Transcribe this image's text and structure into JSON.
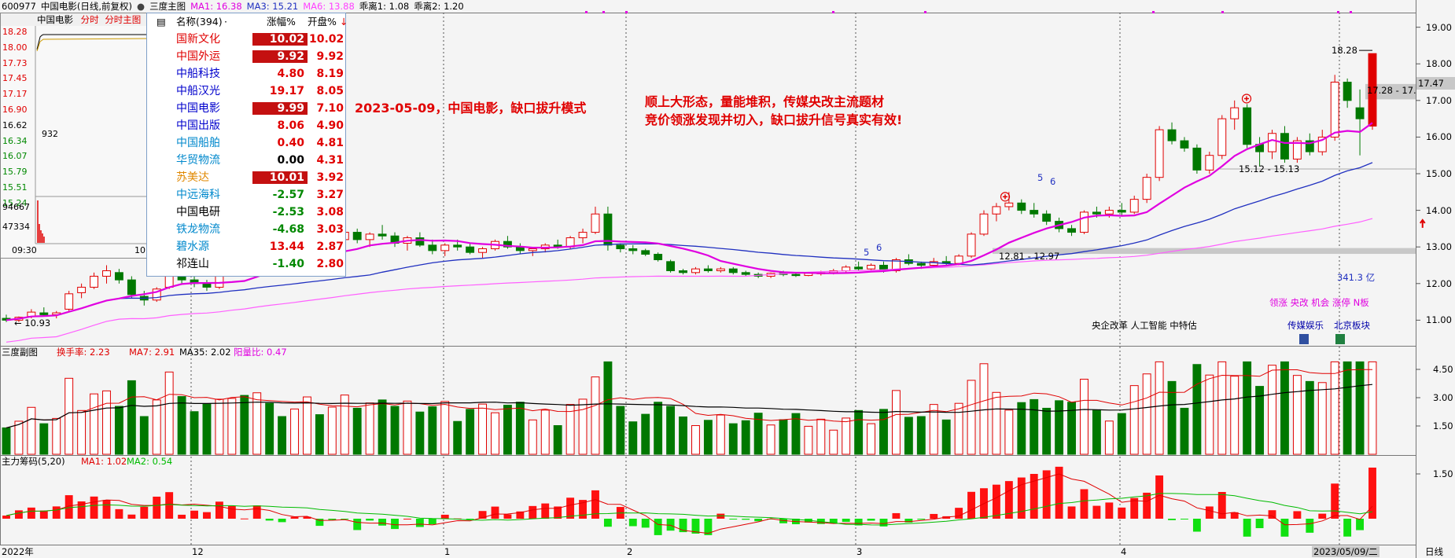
{
  "header": {
    "stock_code": "600977",
    "stock_name": "中国电影(日线,前复权)",
    "main_chart_label": "三度主图",
    "ma1": "MA1: 16.38",
    "ma3": "MA3: 15.21",
    "ma6": "MA6: 13.88",
    "deviation1": "乖离1: 1.08",
    "deviation2": "乖离2: 1.20"
  },
  "notes": {
    "date_note": "2023-05-09，中国电影，缺口拔升模式",
    "analysis_line1": "顺上大形态，量能堆积，传媒央改主流题材",
    "analysis_line2": "竞价领涨发现并切入，缺口拔升信号真实有效!"
  },
  "minute_inset": {
    "name": "中国电影",
    "link1": "分时",
    "link2": "分时主图",
    "price_labels": [
      "18.28",
      "18.00",
      "17.73",
      "17.45",
      "17.17",
      "16.90",
      "16.62",
      "16.34",
      "16.07",
      "15.79",
      "15.51",
      "15.24"
    ],
    "vol_labels": [
      "94667",
      "47334"
    ],
    "start_time": "09:30",
    "end_time_partial": "10",
    "marker": "932"
  },
  "ranking": {
    "header_name": "名称(394)",
    "header_dot": "·",
    "header_chg": "涨幅%",
    "header_open": "开盘%",
    "sort_arrow": "↓",
    "rows": [
      {
        "name": "国新文化",
        "chg": "10.02",
        "open": "10.02",
        "color": "#e00000",
        "hl": true
      },
      {
        "name": "中国外运",
        "chg": "9.92",
        "open": "9.92",
        "color": "#e00000",
        "hl": true
      },
      {
        "name": "中船科技",
        "chg": "4.80",
        "open": "8.19",
        "color": "#0000cc",
        "hl": false
      },
      {
        "name": "中船汉光",
        "chg": "19.17",
        "open": "8.05",
        "color": "#0000cc",
        "hl": false
      },
      {
        "name": "中国电影",
        "chg": "9.99",
        "open": "7.10",
        "color": "#0000cc",
        "hl": true
      },
      {
        "name": "中国出版",
        "chg": "8.06",
        "open": "4.90",
        "color": "#0000cc",
        "hl": false
      },
      {
        "name": "中国船舶",
        "chg": "0.40",
        "open": "4.81",
        "color": "#0088cc",
        "hl": false
      },
      {
        "name": "华贸物流",
        "chg": "0.00",
        "open": "4.31",
        "color": "#0088cc",
        "hl": false
      },
      {
        "name": "苏美达",
        "chg": "10.01",
        "open": "3.92",
        "color": "#e08800",
        "hl": true
      },
      {
        "name": "中远海科",
        "chg": "-2.57",
        "open": "3.27",
        "color": "#0088cc",
        "hl": false
      },
      {
        "name": "中国电研",
        "chg": "-2.53",
        "open": "3.08",
        "color": "#000000",
        "hl": false
      },
      {
        "name": "铁龙物流",
        "chg": "-4.68",
        "open": "3.03",
        "color": "#0088cc",
        "hl": false
      },
      {
        "name": "碧水源",
        "chg": "13.44",
        "open": "2.87",
        "color": "#0088cc",
        "hl": false
      },
      {
        "name": "祁连山",
        "chg": "-1.40",
        "open": "2.80",
        "color": "#000000",
        "hl": false
      }
    ]
  },
  "main_annotations": {
    "low_marker": "10.93",
    "high_marker": "18.28",
    "gap_low": "12.81 - 12.97",
    "gap_mid": "15.12 - 15.13",
    "gap_high": "17.28 - 17.",
    "current_price_tag": "17.47",
    "market_cap": "341.3 亿",
    "tags_line": "领涨 央改 机会 涨停 N板",
    "concepts": "央企改革 人工智能 中特估",
    "sector1": "传媒娱乐",
    "sector2": "北京板块",
    "small_numbers": [
      "5",
      "6",
      "5",
      "6"
    ]
  },
  "sub1": {
    "title": "三度副图",
    "turnover": "换手率: 2.23",
    "ma7": "MA7: 2.91",
    "ma35": "MA35: 2.02",
    "yinyang": "阳量比: 0.47",
    "axis": [
      "4.50",
      "3.00",
      "1.50"
    ]
  },
  "sub2": {
    "title": "主力筹码(5,20)",
    "ma1": "MA1: 1.02",
    "ma2": "MA2: 0.54",
    "axis": [
      "1.50"
    ]
  },
  "x_axis": {
    "labels": [
      "2022年",
      "12",
      "1",
      "2",
      "3",
      "4",
      "2023/05/09/二"
    ],
    "period": "日线"
  },
  "colors": {
    "up": "#e00000",
    "down": "#007800",
    "ma1": "#e000e0",
    "ma3": "#2030c0",
    "ma6": "#ff60ff",
    "background": "#f4f4f4"
  },
  "chart_data": {
    "type": "candlestick",
    "symbol": "600977",
    "title": "中国电影(日线,前复权)",
    "y_range": [
      10.3,
      19.4
    ],
    "y_ticks": [
      11.0,
      12.0,
      13.0,
      14.0,
      15.0,
      16.0,
      17.0,
      18.0,
      19.0
    ],
    "x_tick_labels": [
      "2022年",
      "12",
      "1",
      "2",
      "3",
      "4",
      "2023/05/09/二"
    ],
    "candles_approx": [
      [
        11.05,
        11.15,
        10.95,
        11.0
      ],
      [
        11.0,
        11.1,
        10.95,
        11.08
      ],
      [
        11.1,
        11.3,
        11.05,
        11.22
      ],
      [
        11.2,
        11.35,
        11.1,
        11.15
      ],
      [
        11.15,
        11.25,
        11.05,
        11.2
      ],
      [
        11.3,
        11.8,
        11.25,
        11.72
      ],
      [
        11.75,
        12.0,
        11.6,
        11.9
      ],
      [
        11.9,
        12.3,
        11.85,
        12.2
      ],
      [
        12.2,
        12.5,
        12.0,
        12.35
      ],
      [
        12.3,
        12.4,
        12.0,
        12.1
      ],
      [
        12.1,
        12.2,
        11.6,
        11.7
      ],
      [
        11.65,
        11.8,
        11.4,
        11.55
      ],
      [
        11.55,
        11.9,
        11.5,
        11.85
      ],
      [
        11.9,
        12.5,
        11.85,
        12.4
      ],
      [
        12.4,
        12.6,
        12.0,
        12.1
      ],
      [
        12.1,
        12.2,
        11.9,
        12.0
      ],
      [
        12.0,
        12.1,
        11.8,
        11.9
      ],
      [
        11.9,
        12.3,
        11.85,
        12.25
      ],
      [
        12.3,
        12.6,
        12.2,
        12.55
      ],
      [
        12.55,
        12.7,
        12.3,
        12.4
      ],
      [
        12.45,
        12.9,
        12.4,
        12.85
      ],
      [
        12.9,
        13.1,
        12.7,
        12.8
      ],
      [
        12.8,
        13.0,
        12.6,
        12.7
      ],
      [
        12.7,
        12.9,
        12.55,
        12.85
      ],
      [
        12.9,
        13.2,
        12.8,
        13.1
      ],
      [
        13.1,
        13.3,
        12.9,
        13.0
      ],
      [
        13.0,
        13.2,
        12.85,
        13.15
      ],
      [
        13.2,
        13.5,
        13.1,
        13.4
      ],
      [
        13.4,
        13.5,
        13.1,
        13.2
      ],
      [
        13.2,
        13.4,
        13.0,
        13.35
      ],
      [
        13.35,
        13.6,
        13.2,
        13.3
      ],
      [
        13.3,
        13.4,
        13.0,
        13.1
      ],
      [
        13.1,
        13.3,
        12.9,
        13.25
      ],
      [
        13.25,
        13.4,
        13.0,
        13.05
      ],
      [
        13.05,
        13.2,
        12.8,
        12.9
      ],
      [
        12.9,
        13.1,
        12.75,
        13.05
      ],
      [
        13.05,
        13.2,
        12.9,
        13.0
      ],
      [
        13.0,
        13.1,
        12.8,
        12.85
      ],
      [
        12.85,
        13.0,
        12.7,
        12.95
      ],
      [
        12.95,
        13.2,
        12.9,
        13.15
      ],
      [
        13.15,
        13.3,
        12.95,
        13.0
      ],
      [
        13.0,
        13.1,
        12.8,
        12.9
      ],
      [
        12.9,
        13.0,
        12.75,
        12.95
      ],
      [
        12.95,
        13.1,
        12.85,
        13.05
      ],
      [
        13.05,
        13.2,
        12.95,
        13.0
      ],
      [
        13.0,
        13.3,
        12.95,
        13.25
      ],
      [
        13.25,
        13.5,
        13.1,
        13.4
      ],
      [
        13.4,
        14.1,
        13.35,
        13.9
      ],
      [
        13.9,
        14.1,
        12.9,
        13.05
      ],
      [
        13.05,
        13.1,
        12.85,
        12.95
      ],
      [
        12.95,
        13.05,
        12.8,
        12.9
      ],
      [
        12.9,
        12.95,
        12.75,
        12.8
      ],
      [
        12.8,
        12.85,
        12.6,
        12.65
      ],
      [
        12.6,
        12.65,
        12.3,
        12.35
      ],
      [
        12.35,
        12.4,
        12.25,
        12.3
      ],
      [
        12.3,
        12.45,
        12.25,
        12.4
      ],
      [
        12.4,
        12.5,
        12.3,
        12.35
      ],
      [
        12.35,
        12.45,
        12.3,
        12.4
      ],
      [
        12.4,
        12.45,
        12.25,
        12.3
      ],
      [
        12.3,
        12.35,
        12.2,
        12.25
      ],
      [
        12.25,
        12.3,
        12.15,
        12.2
      ],
      [
        12.2,
        12.3,
        12.15,
        12.28
      ],
      [
        12.28,
        12.35,
        12.2,
        12.25
      ],
      [
        12.25,
        12.3,
        12.18,
        12.22
      ],
      [
        12.22,
        12.3,
        12.2,
        12.28
      ],
      [
        12.28,
        12.35,
        12.22,
        12.3
      ],
      [
        12.3,
        12.4,
        12.25,
        12.35
      ],
      [
        12.35,
        12.5,
        12.3,
        12.45
      ],
      [
        12.45,
        12.6,
        12.35,
        12.4
      ],
      [
        12.4,
        12.55,
        12.35,
        12.5
      ],
      [
        12.5,
        12.6,
        12.3,
        12.35
      ],
      [
        12.35,
        12.7,
        12.3,
        12.65
      ],
      [
        12.65,
        12.8,
        12.5,
        12.55
      ],
      [
        12.55,
        12.6,
        12.4,
        12.5
      ],
      [
        12.5,
        12.7,
        12.45,
        12.6
      ],
      [
        12.6,
        12.75,
        12.5,
        12.55
      ],
      [
        12.55,
        12.8,
        12.5,
        12.75
      ],
      [
        12.75,
        13.4,
        12.7,
        13.35
      ],
      [
        13.35,
        14.0,
        13.3,
        13.9
      ],
      [
        13.9,
        14.2,
        13.7,
        14.1
      ],
      [
        14.1,
        14.5,
        14.0,
        14.2
      ],
      [
        14.2,
        14.3,
        13.9,
        14.0
      ],
      [
        14.0,
        14.2,
        13.8,
        13.9
      ],
      [
        13.9,
        14.0,
        13.6,
        13.7
      ],
      [
        13.7,
        13.8,
        13.4,
        13.5
      ],
      [
        13.5,
        13.6,
        13.3,
        13.4
      ],
      [
        13.4,
        14.0,
        13.35,
        13.95
      ],
      [
        13.95,
        14.1,
        13.8,
        13.9
      ],
      [
        13.9,
        14.1,
        13.8,
        14.0
      ],
      [
        14.0,
        14.2,
        13.85,
        13.95
      ],
      [
        13.95,
        14.4,
        13.9,
        14.3
      ],
      [
        14.3,
        15.0,
        14.2,
        14.9
      ],
      [
        14.9,
        16.3,
        14.8,
        16.2
      ],
      [
        16.2,
        16.4,
        15.8,
        15.9
      ],
      [
        15.9,
        16.0,
        15.6,
        15.7
      ],
      [
        15.7,
        15.8,
        15.0,
        15.1
      ],
      [
        15.1,
        15.6,
        15.0,
        15.5
      ],
      [
        15.5,
        16.6,
        15.4,
        16.5
      ],
      [
        16.5,
        17.0,
        16.2,
        16.8
      ],
      [
        16.8,
        16.9,
        15.7,
        15.8
      ],
      [
        15.8,
        16.0,
        15.2,
        15.6
      ],
      [
        15.6,
        16.2,
        15.4,
        16.1
      ],
      [
        16.1,
        16.3,
        15.3,
        15.4
      ],
      [
        15.4,
        16.0,
        15.3,
        15.9
      ],
      [
        15.9,
        16.1,
        15.5,
        15.6
      ],
      [
        15.6,
        16.2,
        15.5,
        16.0
      ],
      [
        16.0,
        17.7,
        15.9,
        17.5
      ],
      [
        17.5,
        17.6,
        16.8,
        17.0
      ],
      [
        16.8,
        17.3,
        15.5,
        16.5
      ],
      [
        16.3,
        18.28,
        16.2,
        18.28
      ]
    ]
  }
}
